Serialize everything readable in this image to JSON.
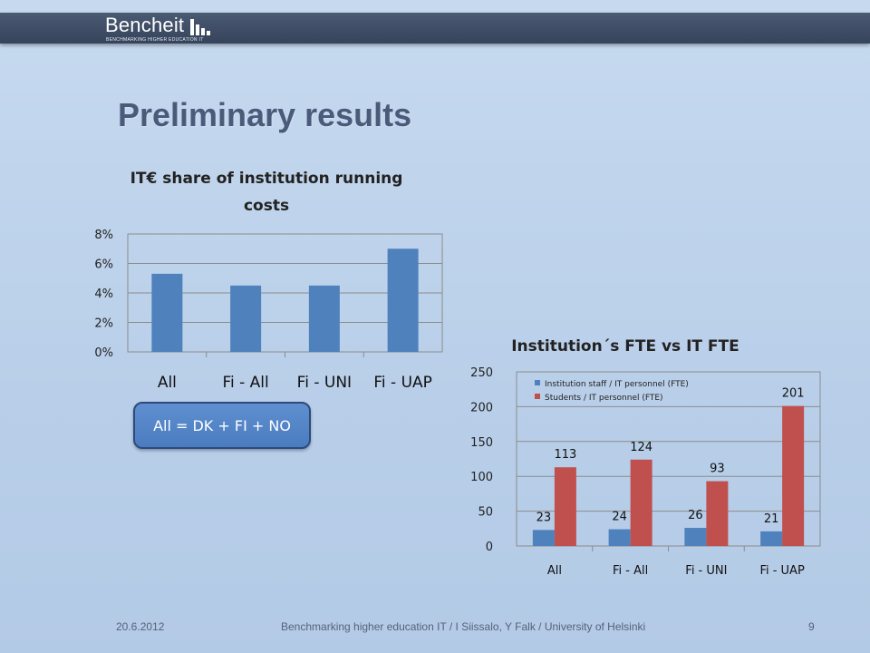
{
  "header": {
    "logo_text": "Bencheit",
    "logo_tagline": "BENCHMARKING HIGHER EDUCATION IT"
  },
  "slide": {
    "title": "Preliminary results",
    "note": "All = DK + FI + NO"
  },
  "footer": {
    "date": "20.6.2012",
    "citation": "Benchmarking higher education IT / I Siissalo, Y Falk / University of Helsinki",
    "page": "9"
  },
  "colors": {
    "blue_series": "#4f81bd",
    "red_series": "#c0504d",
    "title_color": "#4a5b7a"
  },
  "chart_data": [
    {
      "type": "bar",
      "title_lines": [
        "IT€ share of institution running",
        "costs"
      ],
      "categories": [
        "All",
        "Fi - All",
        "Fi - UNI",
        "Fi - UAP"
      ],
      "values": [
        5.3,
        4.5,
        4.5,
        7.0
      ],
      "y_ticks": [
        "0%",
        "2%",
        "4%",
        "6%",
        "8%"
      ],
      "ylim": [
        0,
        8
      ],
      "grid": true,
      "legend": "none"
    },
    {
      "type": "bar",
      "title_lines": [
        "Institution´s FTE vs IT FTE"
      ],
      "categories": [
        "All",
        "Fi - All",
        "Fi - UNI",
        "Fi - UAP"
      ],
      "series": [
        {
          "name": "Institution staff / IT personnel (FTE)",
          "values": [
            23,
            24,
            26,
            21
          ]
        },
        {
          "name": "Students / IT personnel (FTE)",
          "values": [
            113,
            124,
            93,
            201
          ]
        }
      ],
      "y_ticks": [
        "0",
        "50",
        "100",
        "150",
        "200",
        "250"
      ],
      "ylim": [
        0,
        250
      ],
      "grid": true,
      "legend": "top-left"
    }
  ]
}
